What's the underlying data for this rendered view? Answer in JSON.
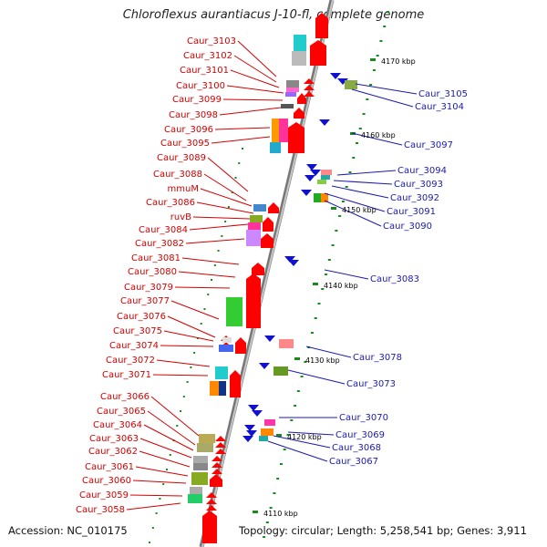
{
  "title": "Chloroflexus aurantiacus J-10-fl, complete genome",
  "accession": "Accession: NC_010175",
  "summary": "Topology: circular; Length: 5,258,541 bp; Genes: 3,911",
  "colors": {
    "forward": "#ff0000",
    "reverse": "#1010d0",
    "backbone": "#999999",
    "tick": "#1a8a1a",
    "forward_label": "#d40000",
    "reverse_label": "#1a1ab0"
  },
  "kbp_marks": [
    {
      "label": "4170 kbp"
    },
    {
      "label": "4160 kbp"
    },
    {
      "label": "4150 kbp"
    },
    {
      "label": "4140 kbp"
    },
    {
      "label": "4130 kbp"
    },
    {
      "label": "4120 kbp"
    },
    {
      "label": "4110 kbp"
    }
  ],
  "forward_labels": [
    "Caur_3103",
    "Caur_3102",
    "Caur_3101",
    "Caur_3100",
    "Caur_3099",
    "Caur_3098",
    "Caur_3096",
    "Caur_3095",
    "Caur_3089",
    "Caur_3088",
    "mmuM",
    "Caur_3086",
    "ruvB",
    "Caur_3084",
    "Caur_3082",
    "Caur_3081",
    "Caur_3080",
    "Caur_3079",
    "Caur_3077",
    "Caur_3076",
    "Caur_3075",
    "Caur_3074",
    "Caur_3072",
    "Caur_3071",
    "Caur_3066",
    "Caur_3065",
    "Caur_3064",
    "Caur_3063",
    "Caur_3062",
    "Caur_3061",
    "Caur_3060",
    "Caur_3059",
    "Caur_3058"
  ],
  "reverse_labels": [
    "Caur_3105",
    "Caur_3104",
    "Caur_3097",
    "Caur_3094",
    "Caur_3093",
    "Caur_3092",
    "Caur_3091",
    "Caur_3090",
    "Caur_3083",
    "Caur_3078",
    "Caur_3073",
    "Caur_3070",
    "Caur_3069",
    "Caur_3068",
    "Caur_3067"
  ]
}
